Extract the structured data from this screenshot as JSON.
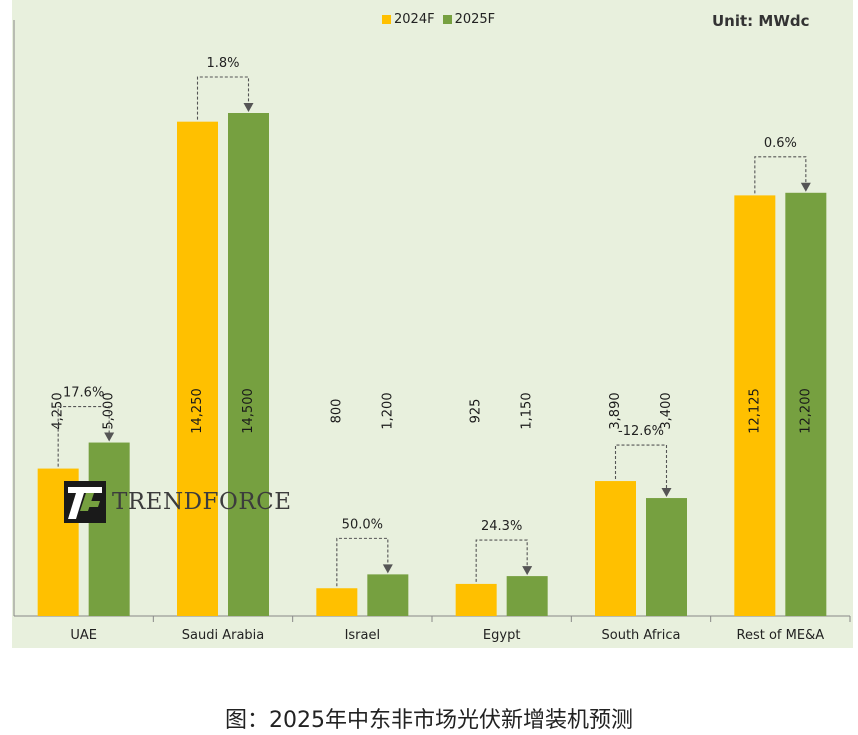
{
  "chart_data": {
    "type": "bar",
    "title": "",
    "unit": "Unit: MWdc",
    "xlabel": "",
    "ylabel": "",
    "ylim": [
      0,
      16500
    ],
    "categories": [
      "UAE",
      "Saudi Arabia",
      "Israel",
      "Egypt",
      "South Africa",
      "Rest of ME&A"
    ],
    "series": [
      {
        "name": "2024F",
        "color": "#ffc000",
        "values": [
          4250,
          14250,
          800,
          925,
          3890,
          12125
        ],
        "labels": [
          "4,250",
          "14,250",
          "800",
          "925",
          "3,890",
          "12,125"
        ]
      },
      {
        "name": "2025F",
        "color": "#76a040",
        "values": [
          5000,
          14500,
          1200,
          1150,
          3400,
          12200
        ],
        "labels": [
          "5,000",
          "14,500",
          "1,200",
          "1,150",
          "3,400",
          "12,200"
        ]
      }
    ],
    "growth_labels": [
      "17.6%",
      "1.8%",
      "50.0%",
      "24.3%",
      "-12.6%",
      "0.6%"
    ],
    "legend_position": "top-center"
  },
  "legend": {
    "items": [
      "2024F",
      "2025F"
    ]
  },
  "logo": {
    "text": "TRENDFORCE"
  },
  "caption": "图：2025年中东非市场光伏新增装机预测"
}
